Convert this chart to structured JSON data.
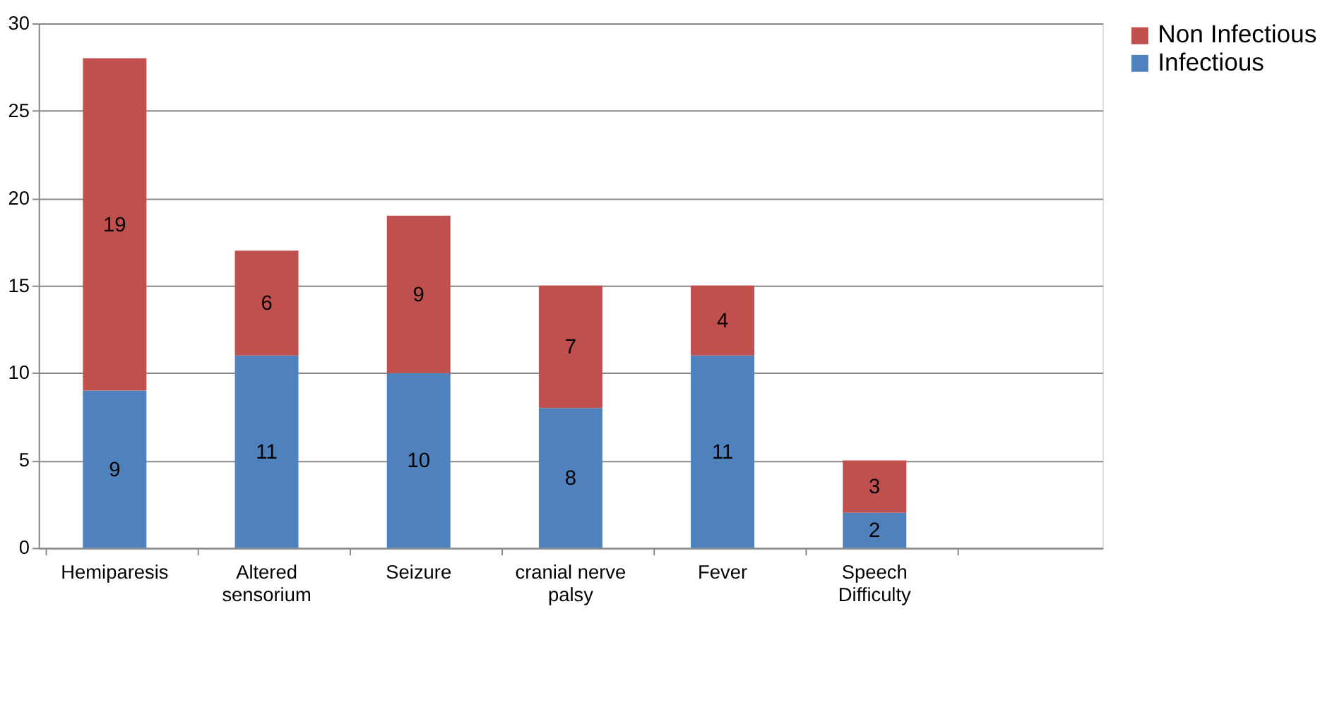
{
  "chart_data": {
    "type": "bar",
    "stacked": true,
    "categories": [
      "Hemiparesis",
      "Altered sensorium",
      "Seizure",
      "cranial nerve palsy",
      "Fever",
      "Speech Difficulty",
      null
    ],
    "series": [
      {
        "name": "Infectious",
        "color": "#4f81bd",
        "values": [
          9,
          11,
          10,
          8,
          11,
          2,
          null
        ]
      },
      {
        "name": "Non Infectious",
        "color": "#c0504d",
        "values": [
          19,
          6,
          9,
          7,
          4,
          3,
          null
        ]
      }
    ],
    "ylim": [
      0,
      30
    ],
    "yticks": [
      0,
      5,
      10,
      15,
      20,
      25,
      30
    ],
    "grid": "y",
    "legend": "right",
    "data_labels": true
  }
}
